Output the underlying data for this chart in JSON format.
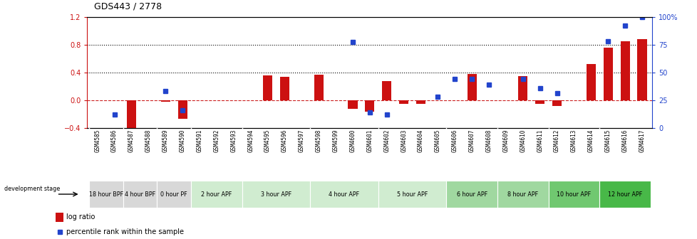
{
  "title": "GDS443 / 2778",
  "samples": [
    "GSM4585",
    "GSM4586",
    "GSM4587",
    "GSM4588",
    "GSM4589",
    "GSM4590",
    "GSM4591",
    "GSM4592",
    "GSM4593",
    "GSM4594",
    "GSM4595",
    "GSM4596",
    "GSM4597",
    "GSM4598",
    "GSM4599",
    "GSM4600",
    "GSM4601",
    "GSM4602",
    "GSM4603",
    "GSM4604",
    "GSM4605",
    "GSM4606",
    "GSM4607",
    "GSM4608",
    "GSM4609",
    "GSM4610",
    "GSM4611",
    "GSM4612",
    "GSM4613",
    "GSM4614",
    "GSM4615",
    "GSM4616",
    "GSM4617"
  ],
  "log_ratio": [
    0.0,
    0.0,
    -0.42,
    0.0,
    -0.02,
    -0.27,
    0.0,
    0.0,
    0.0,
    0.0,
    0.36,
    0.33,
    0.0,
    0.37,
    0.0,
    -0.13,
    -0.17,
    0.27,
    -0.05,
    -0.05,
    0.0,
    0.0,
    0.38,
    0.0,
    0.0,
    0.35,
    -0.05,
    -0.09,
    0.0,
    0.52,
    0.75,
    0.85,
    0.88
  ],
  "percentile": [
    null,
    0.12,
    null,
    null,
    0.33,
    0.16,
    null,
    null,
    null,
    null,
    null,
    null,
    null,
    null,
    null,
    0.77,
    0.14,
    0.12,
    null,
    null,
    0.28,
    0.44,
    0.44,
    0.39,
    null,
    0.44,
    0.36,
    0.31,
    null,
    null,
    0.78,
    0.92,
    1.0
  ],
  "stages": [
    {
      "label": "18 hour BPF",
      "start": 0,
      "end": 2,
      "color": "#d8d8d8"
    },
    {
      "label": "4 hour BPF",
      "start": 2,
      "end": 4,
      "color": "#d8d8d8"
    },
    {
      "label": "0 hour PF",
      "start": 4,
      "end": 6,
      "color": "#d8d8d8"
    },
    {
      "label": "2 hour APF",
      "start": 6,
      "end": 9,
      "color": "#d0ecd0"
    },
    {
      "label": "3 hour APF",
      "start": 9,
      "end": 13,
      "color": "#d0ecd0"
    },
    {
      "label": "4 hour APF",
      "start": 13,
      "end": 17,
      "color": "#d0ecd0"
    },
    {
      "label": "5 hour APF",
      "start": 17,
      "end": 21,
      "color": "#d0ecd0"
    },
    {
      "label": "6 hour APF",
      "start": 21,
      "end": 24,
      "color": "#a0d8a0"
    },
    {
      "label": "8 hour APF",
      "start": 24,
      "end": 27,
      "color": "#a0d8a0"
    },
    {
      "label": "10 hour APF",
      "start": 27,
      "end": 30,
      "color": "#70c870"
    },
    {
      "label": "12 hour APF",
      "start": 30,
      "end": 33,
      "color": "#48b848"
    }
  ],
  "ylim_left": [
    -0.4,
    1.2
  ],
  "ylim_right": [
    0,
    100
  ],
  "bar_color": "#cc1111",
  "dot_color": "#2244cc",
  "zero_line_color": "#cc2222",
  "background_color": "#ffffff",
  "tick_bg_color": "#d8d8d8",
  "legend_log_ratio": "log ratio",
  "legend_percentile": "percentile rank within the sample",
  "dev_stage_label": "development stage"
}
